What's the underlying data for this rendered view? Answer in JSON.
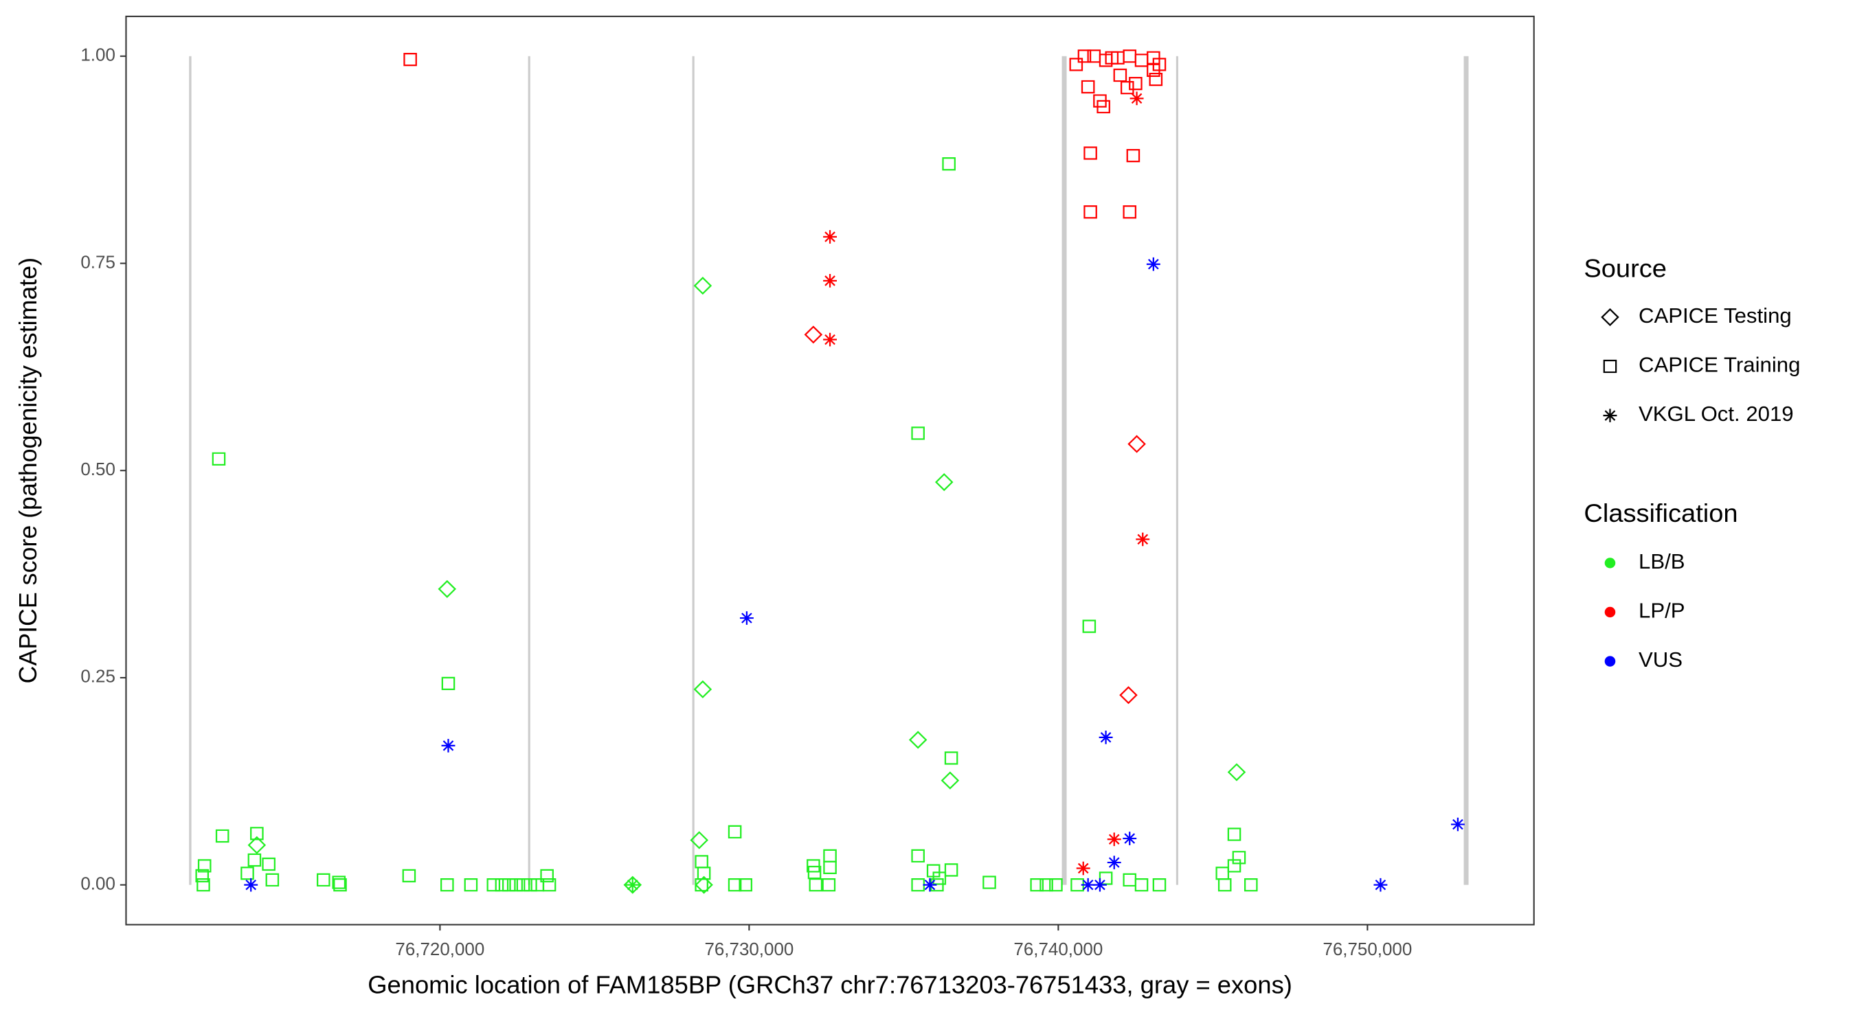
{
  "chart_data": {
    "type": "scatter",
    "x_label": "Genomic location of FAM185BP (GRCh37 chr7:76713203-76751433, gray = exons)",
    "y_label": "CAPICE score (pathogenicity estimate)",
    "xlim": [
      76709846,
      76755385
    ],
    "ylim": [
      -0.048,
      1.048
    ],
    "xticks": [
      {
        "value": 76720000,
        "label": "76,720,000"
      },
      {
        "value": 76730000,
        "label": "76,730,000"
      },
      {
        "value": 76740000,
        "label": "76,740,000"
      },
      {
        "value": 76750000,
        "label": "76,750,000"
      }
    ],
    "yticks": [
      {
        "value": 0,
        "label": "0.00"
      },
      {
        "value": 0.25,
        "label": "0.25"
      },
      {
        "value": 0.5,
        "label": "0.50"
      },
      {
        "value": 0.75,
        "label": "0.75"
      },
      {
        "value": 1,
        "label": "1.00"
      }
    ],
    "grid": false,
    "exon_color": "#cccccc",
    "exons": [
      [
        76711885,
        76711960
      ],
      [
        76722850,
        76722920
      ],
      [
        76728160,
        76728230
      ],
      [
        76740115,
        76740270
      ],
      [
        76743810,
        76743880
      ],
      [
        76753115,
        76753270
      ]
    ],
    "legend_position": "right",
    "legends": {
      "source": {
        "title": "Source",
        "entries": [
          {
            "name": "CAPICE Testing",
            "shape": "diamond"
          },
          {
            "name": "CAPICE Training",
            "shape": "square"
          },
          {
            "name": "VKGL Oct. 2019",
            "shape": "star"
          }
        ]
      },
      "classification": {
        "title": "Classification",
        "entries": [
          {
            "name": "LB/B",
            "color": "#22ee22"
          },
          {
            "name": "LP/P",
            "color": "#ff0000"
          },
          {
            "name": "VUS",
            "color": "#0000ff"
          }
        ]
      }
    },
    "series": [
      {
        "source": "CAPICE Training",
        "classification": "LB/B",
        "x": [
          76712385,
          76712308,
          76712346,
          76712846,
          76712962,
          76713769,
          76714077,
          76714000,
          76714462,
          76714577,
          76716231,
          76716731,
          76716769,
          76719000,
          76720269,
          76720231,
          76721000,
          76721731,
          76722000,
          76722231,
          76722462,
          76722692,
          76722923,
          76723154,
          76723462,
          76723538,
          76728462,
          76728538,
          76728462,
          76729538,
          76729538,
          76729885,
          76732077,
          76732115,
          76732615,
          76732615,
          76732154,
          76732577,
          76735462,
          76736462,
          76735462,
          76735962,
          76736538,
          76736538,
          76736077,
          76735462,
          76736154,
          76737769,
          76739308,
          76739615,
          76739923,
          76741000,
          76740615,
          76741538,
          76742308,
          76742692,
          76743269,
          76745308,
          76745692,
          76745846,
          76745692,
          76745385,
          76746231
        ],
        "values": [
          0.023,
          0.011,
          0,
          0.514,
          0.059,
          0.014,
          0.062,
          0.03,
          0.025,
          0.006,
          0.006,
          0.003,
          0,
          0.011,
          0.243,
          0,
          0,
          0,
          0,
          0,
          0,
          0,
          0,
          0,
          0.011,
          0,
          0.028,
          0.014,
          0,
          0.064,
          0,
          0,
          0.023,
          0.015,
          0.035,
          0.021,
          0,
          0,
          0.545,
          0.87,
          0.035,
          0.017,
          0.153,
          0.018,
          0,
          0,
          0.008,
          0.003,
          0,
          0,
          0,
          0.312,
          0,
          0.008,
          0.006,
          0,
          0,
          0.014,
          0.061,
          0.033,
          0.023,
          0,
          0
        ]
      },
      {
        "source": "CAPICE Testing",
        "classification": "LB/B",
        "x": [
          76714077,
          76728385,
          76728500,
          76728500,
          76720231,
          76735462,
          76736308,
          76736500,
          76745769,
          76726231,
          76728538
        ],
        "values": [
          0.048,
          0.054,
          0.723,
          0.236,
          0.357,
          0.175,
          0.486,
          0.126,
          0.136,
          0,
          0
        ]
      },
      {
        "source": "VKGL Oct. 2019",
        "classification": "LB/B",
        "x": [
          76726231
        ],
        "values": [
          0
        ]
      },
      {
        "source": "CAPICE Training",
        "classification": "LP/P",
        "x": [
          76719038,
          76740577,
          76740846,
          76741154,
          76741538,
          76741923,
          76742308,
          76742692,
          76743077,
          76743269,
          76740962,
          76741346,
          76741462,
          76742000,
          76742231,
          76742500,
          76743077,
          76743154,
          76741038,
          76742423,
          76741038,
          76742308,
          76741731
        ],
        "values": [
          0.996,
          0.99,
          1.0,
          1.0,
          0.995,
          0.998,
          1.0,
          0.995,
          0.998,
          0.99,
          0.963,
          0.946,
          0.939,
          0.977,
          0.962,
          0.967,
          0.983,
          0.972,
          0.883,
          0.88,
          0.812,
          0.812,
          0.998
        ]
      },
      {
        "source": "CAPICE Testing",
        "classification": "LP/P",
        "x": [
          76732077,
          76742538,
          76742269
        ],
        "values": [
          0.664,
          0.532,
          0.229
        ]
      },
      {
        "source": "VKGL Oct. 2019",
        "classification": "LP/P",
        "x": [
          76732615,
          76732615,
          76732615,
          76742538,
          76742731,
          76740808,
          76741808
        ],
        "values": [
          0.782,
          0.729,
          0.658,
          0.949,
          0.417,
          0.02,
          0.055
        ]
      },
      {
        "source": "VKGL Oct. 2019",
        "classification": "VUS",
        "x": [
          76713885,
          76720269,
          76729923,
          76735846,
          76743077,
          76741538,
          76742308,
          76741808,
          76740962,
          76741346,
          76750423,
          76752923
        ],
        "values": [
          0,
          0.168,
          0.322,
          0,
          0.749,
          0.178,
          0.056,
          0.027,
          0,
          0,
          0,
          0.073
        ]
      }
    ]
  }
}
